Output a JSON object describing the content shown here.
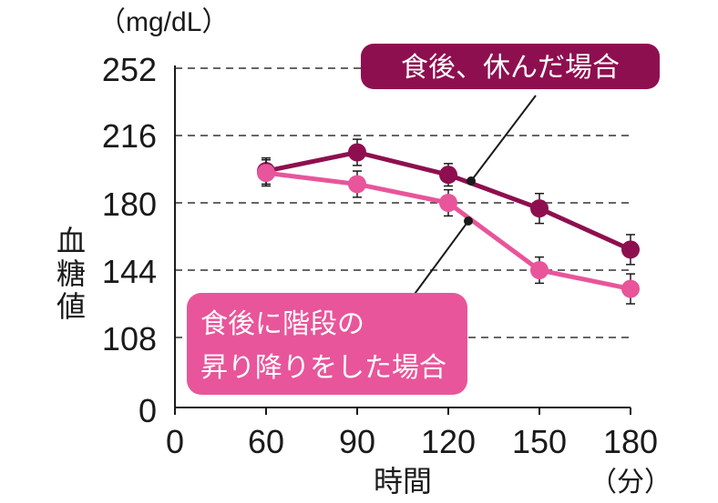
{
  "chart_data": {
    "type": "line",
    "unit_label": "（mg/dL）",
    "ylabel": "血糖値",
    "xlabel": "時間",
    "xunit": "（分）",
    "x_ticks": [
      "0",
      "60",
      "90",
      "120",
      "150",
      "180"
    ],
    "y_ticks": [
      "252",
      "216",
      "180",
      "144",
      "108",
      "0"
    ],
    "x": [
      60,
      90,
      120,
      150,
      180
    ],
    "series": [
      {
        "name": "食後、休んだ場合",
        "color": "#8e0f4f",
        "values": [
          197,
          207,
          195,
          177,
          155
        ],
        "error": [
          7,
          7,
          6,
          8,
          8
        ]
      },
      {
        "name": "食後に階段の昇り降りをした場合",
        "name_lines": [
          "食後に階段の",
          "昇り降りをした場合"
        ],
        "color": "#e8559a",
        "values": [
          196,
          190,
          180,
          144,
          134
        ],
        "error": [
          7,
          7,
          7,
          7,
          8
        ]
      }
    ]
  }
}
